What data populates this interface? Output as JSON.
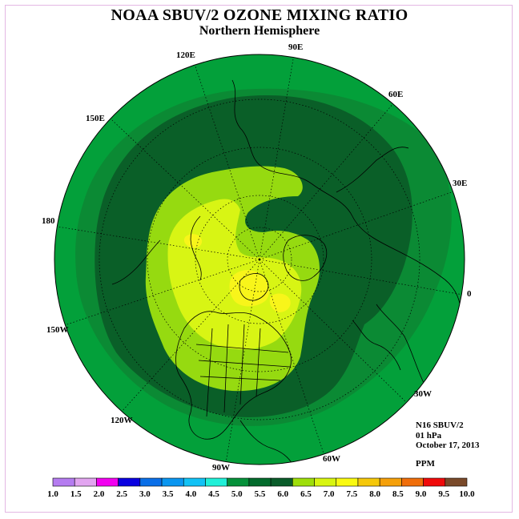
{
  "title": "NOAA SBUV/2 OZONE MIXING RATIO",
  "subtitle": "Northern Hemisphere",
  "info": {
    "instrument": "N16 SBUV/2",
    "level": "01 hPa",
    "date": "October 17, 2013",
    "units": "PPM"
  },
  "longitude_labels": [
    "90E",
    "60E",
    "30E",
    "0",
    "30W",
    "60W",
    "90W",
    "120W",
    "150W",
    "180",
    "150E",
    "120E"
  ],
  "colorbar": {
    "ticks": [
      "1.0",
      "1.5",
      "2.0",
      "2.5",
      "3.0",
      "3.5",
      "4.0",
      "4.5",
      "5.0",
      "5.5",
      "6.0",
      "6.5",
      "7.0",
      "7.5",
      "8.0",
      "8.5",
      "9.0",
      "9.5",
      "10.0"
    ],
    "colors": [
      "#b57cf0",
      "#e2a5f0",
      "#f200f0",
      "#0a00e0",
      "#0a6fe8",
      "#0a96f0",
      "#12c2f5",
      "#20f0d8",
      "#05913a",
      "#036b2c",
      "#0a5c2a",
      "#9ede0a",
      "#d8f510",
      "#fafa10",
      "#f5c80a",
      "#f5a00a",
      "#f06e0a",
      "#f00a0a",
      "#7a4a2a"
    ]
  },
  "map_colors": {
    "band_5_0": "#03a03a",
    "band_5_5": "#0b8a34",
    "band_6_0": "#0a5f28",
    "band_6_5": "#96da10",
    "band_7_0": "#d8f514",
    "band_7_5": "#f8f51a"
  }
}
